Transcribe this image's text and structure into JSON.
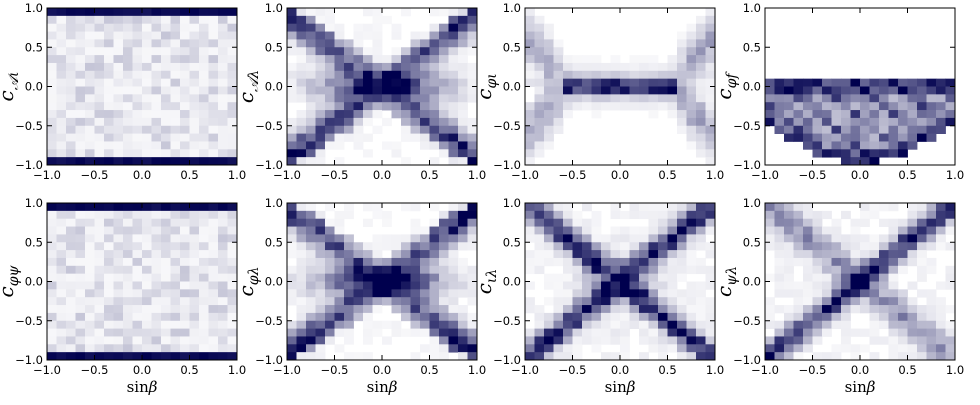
{
  "chart_data": {
    "type": "heatmap",
    "layout": "2x4 grid of 2D histograms",
    "colormap": {
      "low": "#ffffff",
      "high": "#00004e"
    },
    "grid": false,
    "x_range": [
      -1.0,
      1.0
    ],
    "y_range": [
      -1.0,
      1.0
    ],
    "x_ticks": [
      "−1.0",
      "−0.5",
      "0.0",
      "0.5",
      "1.0"
    ],
    "y_ticks": [
      "1.0",
      "0.5",
      "0.0",
      "−0.5",
      "−1.0"
    ],
    "xlabel_shown": "sinβ",
    "panels": [
      {
        "ylabel": "c_{𝒜ι}",
        "ylabel_main": "c",
        "ylabel_sub": "𝒜ι",
        "show_xlabel": false,
        "pattern": "edges",
        "description_values": {
          "dense_bands_at_y": [
            0.96,
            -0.96
          ],
          "band_density": 1.0,
          "background_density": 0.12
        }
      },
      {
        "ylabel": "c_{𝒜λ}",
        "ylabel_main": "c",
        "ylabel_sub": "𝒜λ",
        "show_xlabel": false,
        "pattern": "bowtie",
        "description_values": {
          "arm_slope": 0.95,
          "center_width": 0.12
        }
      },
      {
        "ylabel": "c_{φι}",
        "ylabel_main": "c",
        "ylabel_sub": "φι",
        "show_xlabel": false,
        "pattern": "flatbar",
        "description_values": {
          "bar_y": 0.0,
          "bar_x_range": [
            -0.6,
            0.6
          ]
        }
      },
      {
        "ylabel": "c_{φf}",
        "ylabel_main": "c",
        "ylabel_sub": "φf",
        "show_xlabel": false,
        "pattern": "negative_bowl",
        "description_values": {
          "y_range": [
            -0.92,
            0.05
          ]
        }
      },
      {
        "ylabel": "c_{φψ}",
        "ylabel_main": "c",
        "ylabel_sub": "φψ",
        "show_xlabel": true,
        "pattern": "edges",
        "description_values": {
          "dense_bands_at_y": [
            0.96,
            -0.96
          ],
          "band_density": 1.0,
          "background_density": 0.12
        }
      },
      {
        "ylabel": "c_{φλ}",
        "ylabel_main": "c",
        "ylabel_sub": "φλ",
        "show_xlabel": true,
        "pattern": "bowtie",
        "description_values": {
          "arm_slope": 0.95,
          "center_width": 0.15
        }
      },
      {
        "ylabel": "c_{ιλ}",
        "ylabel_main": "c",
        "ylabel_sub": "ιλ",
        "show_xlabel": true,
        "pattern": "xcross",
        "description_values": {
          "arm_slope": 1.0
        }
      },
      {
        "ylabel": "c_{ψλ}",
        "ylabel_main": "c",
        "ylabel_sub": "ψλ",
        "show_xlabel": true,
        "pattern": "diagonal",
        "description_values": {
          "main_slope": 1.0,
          "secondary_slope": -1.0
        }
      }
    ]
  }
}
